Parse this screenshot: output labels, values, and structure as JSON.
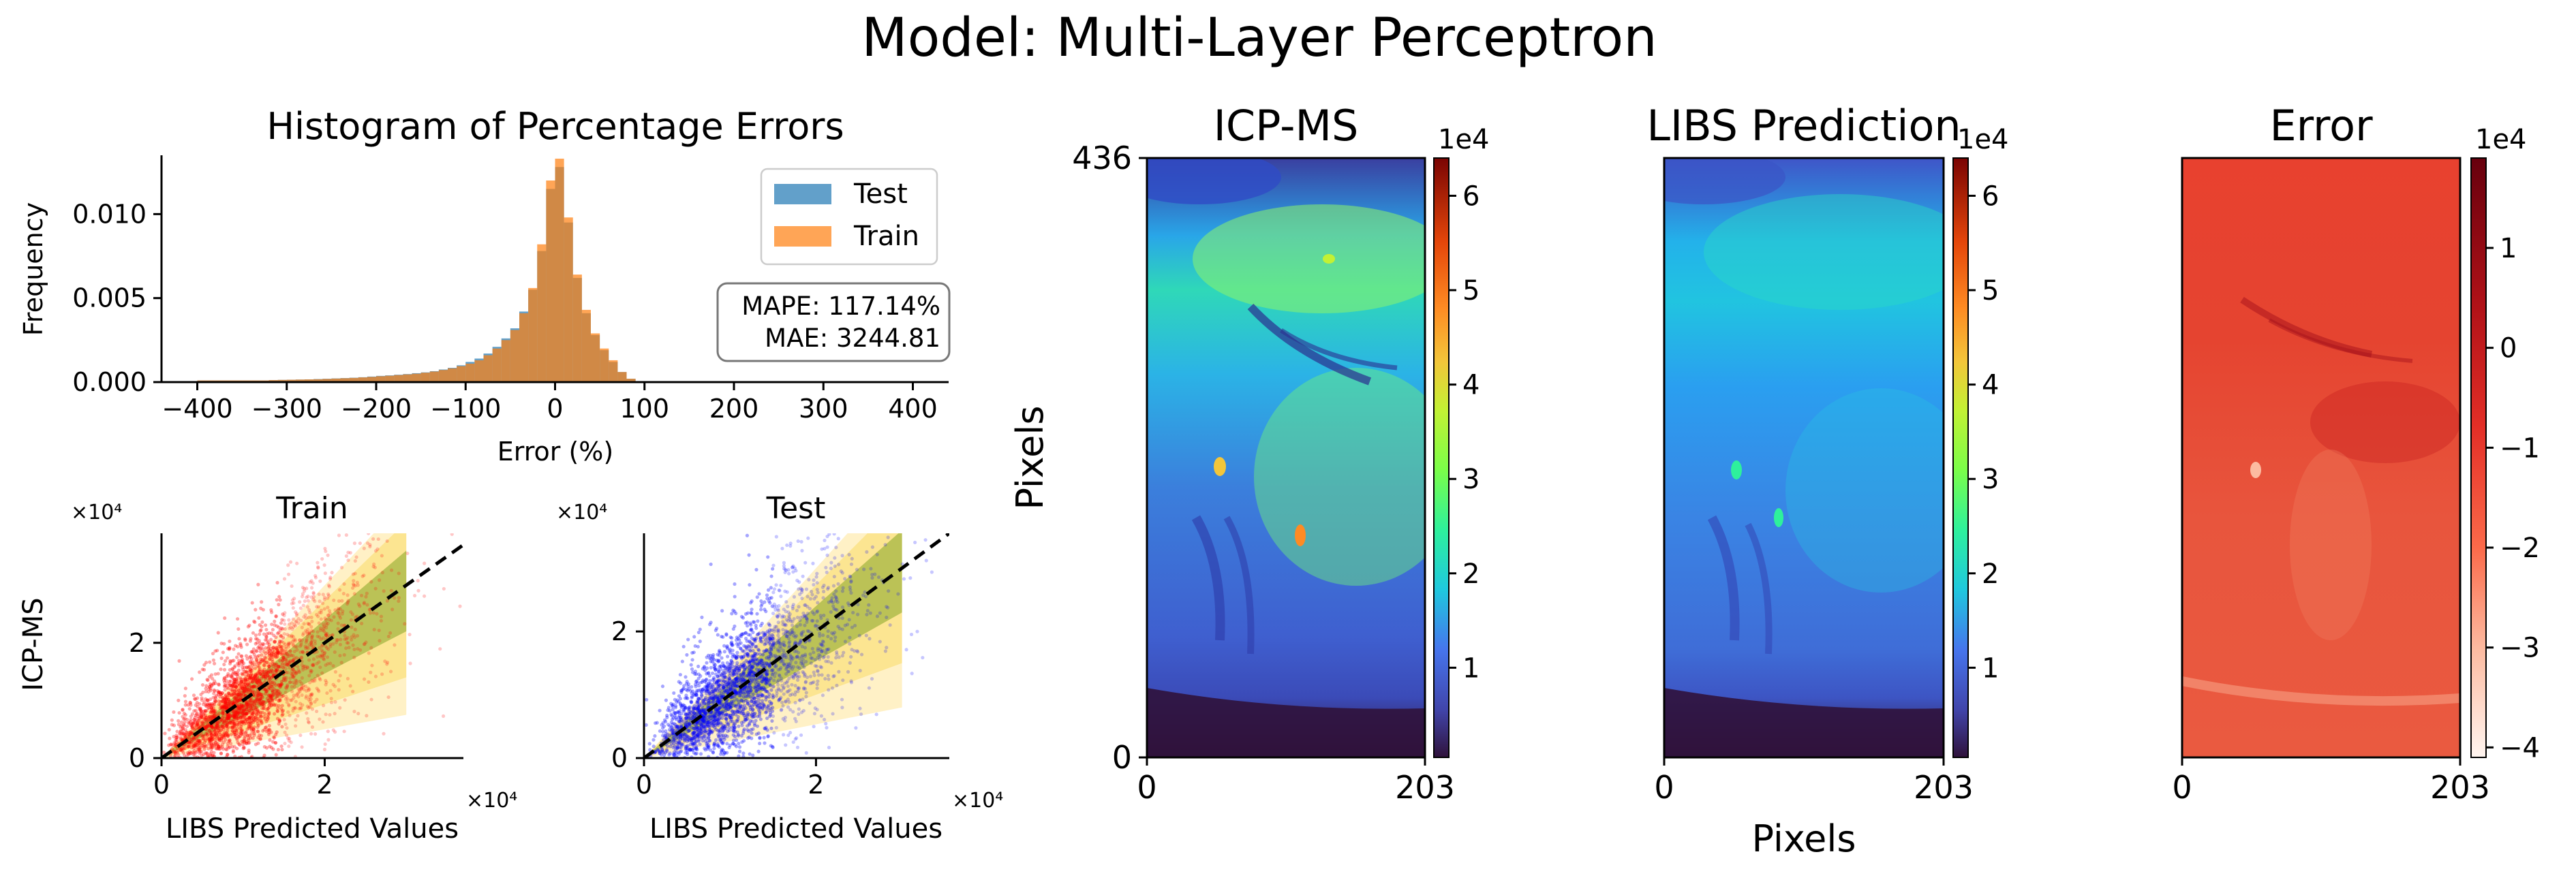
{
  "figure": {
    "title": "Model: Multi-Layer Perceptron"
  },
  "colors": {
    "test": "#1f77b4",
    "train": "#ff7f0e",
    "train_points": "#ff0000",
    "test_points": "#0000ff",
    "band_outer": "#ffd24d",
    "band_middle": "#f6d33c",
    "band_inner": "#8faa2f",
    "diagonal": "#000000"
  },
  "chart_data": [
    {
      "type": "bar",
      "name": "histogram",
      "title": "Histogram of Percentage Errors",
      "xlabel": "Error (%)",
      "ylabel": "Frequency",
      "xlim": [
        -440,
        440
      ],
      "ylim": [
        0,
        0.0135
      ],
      "xticks": [
        "−400",
        "−300",
        "−200",
        "−100",
        "0",
        "100",
        "200",
        "300",
        "400"
      ],
      "xtick_values": [
        -400,
        -300,
        -200,
        -100,
        0,
        100,
        200,
        300,
        400
      ],
      "yticks": [
        "0.000",
        "0.005",
        "0.010"
      ],
      "ytick_values": [
        0,
        0.005,
        0.01
      ],
      "legend": {
        "position": "top-right",
        "entries": [
          "Test",
          "Train"
        ]
      },
      "annotation": {
        "line1": "MAPE: 117.14%",
        "line2": "MAE: 3244.81"
      },
      "bin_width": 10,
      "series": [
        {
          "name": "Test",
          "bin_starts": [
            -400,
            -390,
            -380,
            -370,
            -360,
            -350,
            -340,
            -330,
            -320,
            -310,
            -300,
            -290,
            -280,
            -270,
            -260,
            -250,
            -240,
            -230,
            -220,
            -210,
            -200,
            -190,
            -180,
            -170,
            -160,
            -150,
            -140,
            -130,
            -120,
            -110,
            -100,
            -90,
            -80,
            -70,
            -60,
            -50,
            -40,
            -30,
            -20,
            -10,
            0,
            10,
            20,
            30,
            40,
            50,
            60,
            70,
            80,
            90
          ],
          "values": [
            0.0001,
            0.0001,
            0.0001,
            0.0001,
            0.0001,
            0.0001,
            0.0001,
            0.0001,
            0.00012,
            0.00013,
            0.00014,
            0.00015,
            0.00016,
            0.00018,
            0.0002,
            0.00022,
            0.00024,
            0.00026,
            0.00029,
            0.00033,
            0.00037,
            0.0004,
            0.00044,
            0.00048,
            0.00053,
            0.00058,
            0.00065,
            0.00075,
            0.00085,
            0.001,
            0.0012,
            0.0014,
            0.0017,
            0.0021,
            0.0026,
            0.0032,
            0.0042,
            0.0055,
            0.0078,
            0.0115,
            0.0128,
            0.0095,
            0.0062,
            0.0041,
            0.0028,
            0.0019,
            0.0012,
            0.0006,
            0.0002,
            5e-05
          ]
        },
        {
          "name": "Train",
          "bin_starts": [
            -400,
            -390,
            -380,
            -370,
            -360,
            -350,
            -340,
            -330,
            -320,
            -310,
            -300,
            -290,
            -280,
            -270,
            -260,
            -250,
            -240,
            -230,
            -220,
            -210,
            -200,
            -190,
            -180,
            -170,
            -160,
            -150,
            -140,
            -130,
            -120,
            -110,
            -100,
            -90,
            -80,
            -70,
            -60,
            -50,
            -40,
            -30,
            -20,
            -10,
            0,
            10,
            20,
            30,
            40,
            50,
            60,
            70,
            80,
            90
          ],
          "values": [
            0.0001,
            0.0001,
            0.0001,
            0.0001,
            0.0001,
            0.0001,
            0.0001,
            0.0001,
            0.00012,
            0.00013,
            0.00014,
            0.00015,
            0.00016,
            0.00017,
            0.00019,
            0.00021,
            0.00023,
            0.00025,
            0.00028,
            0.00031,
            0.00035,
            0.00038,
            0.00042,
            0.00046,
            0.0005,
            0.00056,
            0.00063,
            0.00072,
            0.00082,
            0.00095,
            0.0011,
            0.0013,
            0.0016,
            0.002,
            0.0025,
            0.0031,
            0.0041,
            0.0056,
            0.0082,
            0.012,
            0.0133,
            0.0098,
            0.0064,
            0.0043,
            0.0029,
            0.002,
            0.0013,
            0.0006,
            0.0002,
            5e-05
          ]
        }
      ]
    },
    {
      "type": "scatter",
      "name": "train-scatter",
      "title": "Train",
      "xlabel": "LIBS Predicted Values",
      "ylabel": "ICP-MS",
      "x_scale_label": "×10⁴",
      "y_scale_label": "×10⁴",
      "xlim": [
        0,
        3.7
      ],
      "ylim": [
        0,
        3.9
      ],
      "xticks": [
        "0",
        "2"
      ],
      "xtick_values": [
        0,
        2
      ],
      "yticks": [
        "0",
        "2"
      ],
      "ytick_values": [
        0,
        2
      ],
      "point_color": "#ff0000",
      "diagonal": [
        [
          0,
          0
        ],
        [
          3.7,
          3.7
        ]
      ],
      "bands": [
        {
          "level": "outer",
          "x_end": 3.0,
          "upper_end": 4.5,
          "lower_end": 0.75
        },
        {
          "level": "middle",
          "x_end": 3.0,
          "upper_end": 4.1,
          "lower_end": 1.4
        },
        {
          "level": "inner",
          "x_end": 3.0,
          "upper_end": 3.6,
          "lower_end": 2.2
        }
      ]
    },
    {
      "type": "scatter",
      "name": "test-scatter",
      "title": "Test",
      "xlabel": "LIBS Predicted Values",
      "ylabel": "",
      "x_scale_label": "×10⁴",
      "y_scale_label": "×10⁴",
      "xlim": [
        0,
        3.55
      ],
      "ylim": [
        0,
        3.55
      ],
      "xticks": [
        "0",
        "2"
      ],
      "xtick_values": [
        0,
        2
      ],
      "yticks": [
        "0",
        "2"
      ],
      "ytick_values": [
        0,
        2
      ],
      "point_color": "#0000ff",
      "diagonal": [
        [
          0,
          0
        ],
        [
          3.55,
          3.55
        ]
      ],
      "bands": [
        {
          "level": "outer",
          "x_end": 3.0,
          "upper_end": 4.5,
          "lower_end": 0.8
        },
        {
          "level": "middle",
          "x_end": 3.0,
          "upper_end": 4.1,
          "lower_end": 1.5
        },
        {
          "level": "inner",
          "x_end": 3.0,
          "upper_end": 3.6,
          "lower_end": 2.3
        }
      ]
    },
    {
      "type": "heatmap",
      "name": "icp-ms-map",
      "title": "ICP-MS",
      "ylabel": "Pixels",
      "xticks": [
        "0",
        "203"
      ],
      "yticks": [
        "0",
        "436"
      ],
      "colormap": "turbo",
      "colorbar": {
        "exponent_label": "1e4",
        "ticks": [
          "1",
          "2",
          "3",
          "4",
          "5",
          "6"
        ],
        "tick_values": [
          1,
          2,
          3,
          4,
          5,
          6
        ],
        "range": [
          0.05,
          6.4
        ]
      }
    },
    {
      "type": "heatmap",
      "name": "libs-prediction-map",
      "title": "LIBS Prediction",
      "xlabel": "Pixels",
      "xticks": [
        "0",
        "203"
      ],
      "colormap": "turbo",
      "colorbar": {
        "exponent_label": "1e4",
        "ticks": [
          "1",
          "2",
          "3",
          "4",
          "5",
          "6"
        ],
        "tick_values": [
          1,
          2,
          3,
          4,
          5,
          6
        ],
        "range": [
          0.05,
          6.4
        ]
      }
    },
    {
      "type": "heatmap",
      "name": "error-map",
      "title": "Error",
      "xticks": [
        "0",
        "203"
      ],
      "colormap": "reds",
      "colorbar": {
        "exponent_label": "1e4",
        "ticks": [
          "1",
          "0",
          "−1",
          "−2",
          "−3",
          "−4"
        ],
        "tick_values": [
          1,
          0,
          -1,
          -2,
          -3,
          -4
        ],
        "range": [
          -4.1,
          1.9
        ]
      }
    }
  ]
}
